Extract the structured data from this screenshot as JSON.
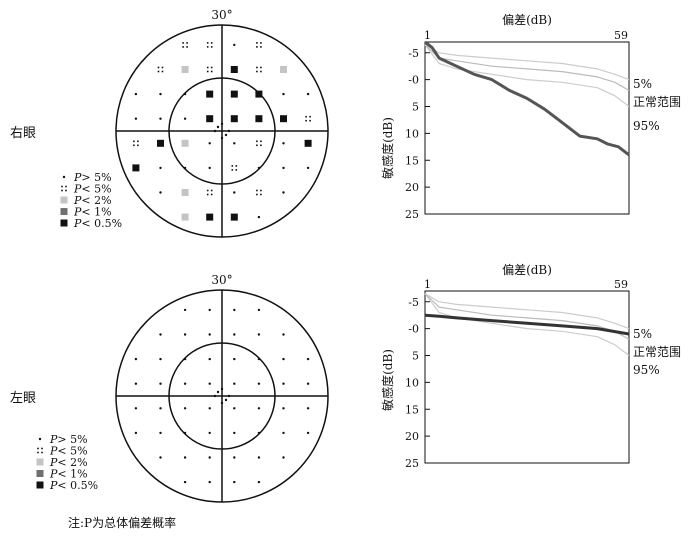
{
  "right_eye": {
    "label": "右眼",
    "angle_label": "30°",
    "legend": [
      "P> 5%",
      "P< 5%",
      "P< 2%",
      "P< 1%",
      "P< 0.5%"
    ],
    "chart": {
      "xlabel": "偏差(dB)",
      "ylabel": "敏感度(dB)",
      "x_start": "1",
      "x_end": "59",
      "yticks": [
        "-5",
        "-0",
        "5",
        "10",
        "15",
        "20",
        "25"
      ],
      "labels": [
        "5%",
        "正常范围",
        "95%"
      ]
    }
  },
  "left_eye": {
    "label": "左眼",
    "angle_label": "30°",
    "legend": [
      "P> 5%",
      "P< 5%",
      "P< 2%",
      "P< 1%",
      "P< 0.5%"
    ],
    "chart": {
      "xlabel": "偏差(dB)",
      "ylabel": "敏感度(dB)",
      "x_start": "1",
      "x_end": "59",
      "yticks": [
        "-5",
        "-0",
        "5",
        "10",
        "15",
        "20",
        "25"
      ],
      "labels": [
        "5%",
        "正常范围",
        "95%"
      ]
    }
  },
  "note": "注:P为总体偏差概率",
  "chart_data": [
    {
      "type": "line",
      "eye": "right",
      "xlabel": "偏差(dB)",
      "ylabel": "敏感度(dB)",
      "xlim": [
        1,
        59
      ],
      "ylim": [
        -7,
        25
      ],
      "yticks": [
        -5,
        0,
        5,
        10,
        15,
        20,
        25
      ],
      "series": [
        {
          "name": "5%",
          "color": "#cccccc",
          "x": [
            1,
            5,
            10,
            20,
            30,
            40,
            50,
            55,
            59
          ],
          "y": [
            -6.5,
            -5,
            -4.5,
            -4,
            -3.5,
            -3,
            -2,
            -1,
            0
          ]
        },
        {
          "name": "正常范围",
          "color": "#bbbbbb",
          "x": [
            1,
            5,
            10,
            20,
            30,
            40,
            50,
            55,
            59
          ],
          "y": [
            -6.5,
            -4,
            -3.5,
            -2.5,
            -2,
            -1.5,
            -0.5,
            0.5,
            2
          ]
        },
        {
          "name": "95%",
          "color": "#cccccc",
          "x": [
            1,
            5,
            10,
            20,
            30,
            40,
            50,
            55,
            59
          ],
          "y": [
            -6.5,
            -3,
            -2,
            -1,
            0,
            0.5,
            1.5,
            3,
            5
          ]
        },
        {
          "color": "#555555",
          "bold": true,
          "x": [
            1,
            3,
            5,
            10,
            15,
            20,
            25,
            30,
            35,
            40,
            45,
            50,
            53,
            56,
            59
          ],
          "y": [
            -7,
            -6,
            -4,
            -2.5,
            -1,
            0,
            2,
            3.5,
            5.5,
            8,
            10.5,
            11,
            12,
            12.5,
            14
          ]
        }
      ]
    },
    {
      "type": "line",
      "eye": "left",
      "xlabel": "偏差(dB)",
      "ylabel": "敏感度(dB)",
      "xlim": [
        1,
        59
      ],
      "ylim": [
        -7,
        25
      ],
      "yticks": [
        -5,
        0,
        5,
        10,
        15,
        20,
        25
      ],
      "series": [
        {
          "name": "5%",
          "color": "#cccccc",
          "x": [
            1,
            5,
            10,
            20,
            30,
            40,
            50,
            55,
            59
          ],
          "y": [
            -6.5,
            -5,
            -4.5,
            -4,
            -3.5,
            -3,
            -2,
            -1,
            0
          ]
        },
        {
          "name": "正常范围",
          "color": "#bbbbbb",
          "x": [
            1,
            5,
            10,
            20,
            30,
            40,
            50,
            55,
            59
          ],
          "y": [
            -6.5,
            -4,
            -3.5,
            -2.5,
            -2,
            -1.5,
            -0.5,
            0.5,
            2
          ]
        },
        {
          "name": "95%",
          "color": "#cccccc",
          "x": [
            1,
            5,
            10,
            20,
            30,
            40,
            50,
            55,
            59
          ],
          "y": [
            -6.5,
            -3,
            -2,
            -1,
            0,
            0.5,
            1.5,
            3,
            5
          ]
        },
        {
          "color": "#333333",
          "bold": true,
          "x": [
            1,
            5,
            10,
            20,
            30,
            40,
            50,
            59
          ],
          "y": [
            -2.5,
            -2.3,
            -2,
            -1.5,
            -1,
            -0.5,
            0,
            1
          ]
        }
      ]
    }
  ]
}
